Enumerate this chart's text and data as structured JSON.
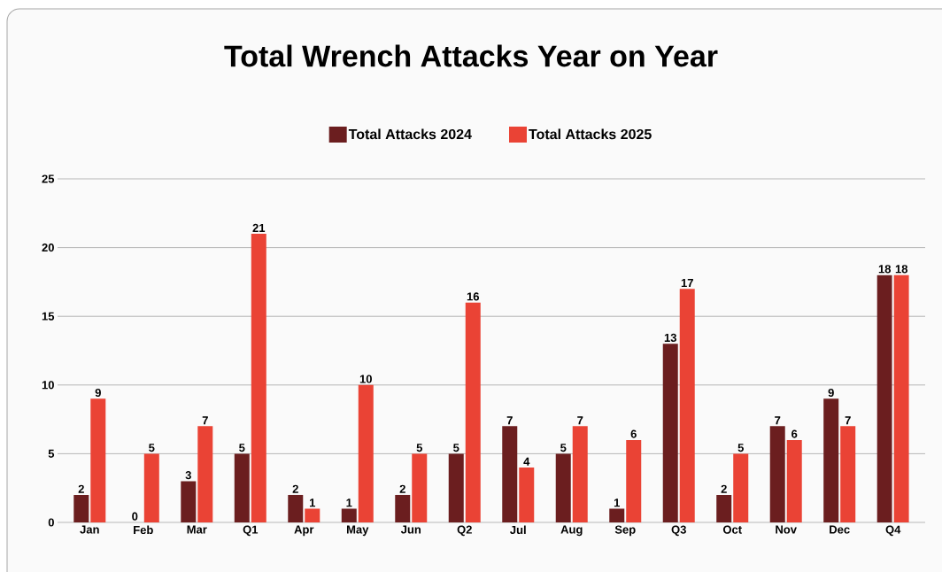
{
  "chart_data": {
    "type": "bar",
    "title": "Total Wrench Attacks Year on Year",
    "categories": [
      "Jan",
      "Feb",
      "Mar",
      "Q1",
      "Apr",
      "May",
      "Jun",
      "Q2",
      "Jul",
      "Aug",
      "Sep",
      "Q3",
      "Oct",
      "Nov",
      "Dec",
      "Q4"
    ],
    "series": [
      {
        "name": "Total Attacks 2024",
        "color": "#6b1e1f",
        "values": [
          2,
          0,
          3,
          5,
          2,
          1,
          2,
          5,
          7,
          5,
          1,
          13,
          2,
          7,
          9,
          18
        ]
      },
      {
        "name": "Total Attacks 2025",
        "color": "#ea4335",
        "values": [
          9,
          5,
          7,
          21,
          1,
          10,
          5,
          16,
          4,
          7,
          6,
          17,
          5,
          6,
          7,
          18
        ]
      }
    ],
    "ylim": [
      0,
      25
    ],
    "yticks": [
      0,
      5,
      10,
      15,
      20,
      25
    ],
    "grid": "y",
    "legend": "top",
    "data_labels": true
  }
}
